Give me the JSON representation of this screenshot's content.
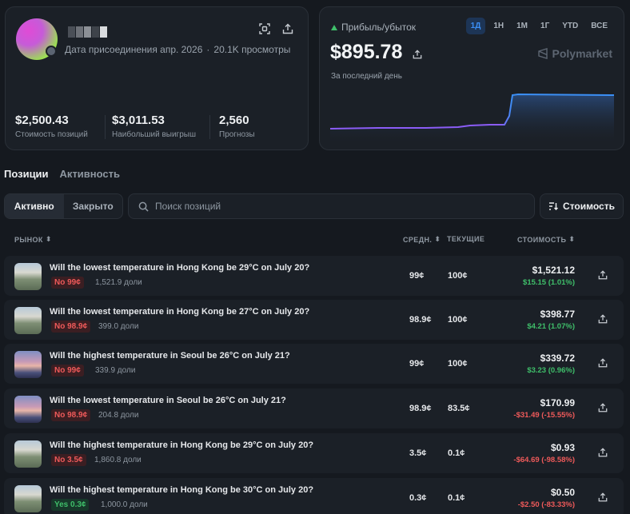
{
  "profile": {
    "joined": "Дата присоединения апр. 2026",
    "views": "20.1K просмотры",
    "stats": [
      {
        "value": "$2,500.43",
        "label": "Стоимость позиций"
      },
      {
        "value": "$3,011.53",
        "label": "Наибольший выигрыш"
      },
      {
        "value": "2,560",
        "label": "Прогнозы"
      }
    ]
  },
  "pnl": {
    "label": "Прибыль/убыток",
    "value": "$895.78",
    "sub": "За последний день",
    "brand": "Polymarket",
    "ranges": [
      "1Д",
      "1Н",
      "1М",
      "1Г",
      "YTD",
      "ВСЕ"
    ],
    "active_range": "1Д",
    "colors": {
      "line_low": "#8b5cf6",
      "line_high": "#3b8ff5",
      "gain": "#3fbf6a",
      "loss": "#ef5a5a"
    }
  },
  "tabs": {
    "positions": "Позиции",
    "activity": "Активность"
  },
  "filters": {
    "active": "Активно",
    "closed": "Закрыто",
    "search_placeholder": "Поиск позиций",
    "sort": "Стоимость"
  },
  "columns": {
    "market": "РЫНОК",
    "avg": "СРЕДН.",
    "current": "ТЕКУЩИЕ",
    "value": "СТОИМОСТЬ"
  },
  "positions": [
    {
      "title": "Will the lowest temperature in Hong Kong be 29°C on July 20?",
      "badge": "No 99¢",
      "side": "no",
      "shares": "1,521.9 доли",
      "avg": "99¢",
      "current": "100¢",
      "value": "$1,521.12",
      "change": "$15.15 (1.01%)",
      "dir": "pos",
      "thumb": "hk"
    },
    {
      "title": "Will the lowest temperature in Hong Kong be 27°C on July 20?",
      "badge": "No 98.9¢",
      "side": "no",
      "shares": "399.0 доли",
      "avg": "98.9¢",
      "current": "100¢",
      "value": "$398.77",
      "change": "$4.21 (1.07%)",
      "dir": "pos",
      "thumb": "hk"
    },
    {
      "title": "Will the highest temperature in Seoul be 26°C on July 21?",
      "badge": "No 99¢",
      "side": "no",
      "shares": "339.9 доли",
      "avg": "99¢",
      "current": "100¢",
      "value": "$339.72",
      "change": "$3.23 (0.96%)",
      "dir": "pos",
      "thumb": "seoul"
    },
    {
      "title": "Will the lowest temperature in Seoul be 26°C on July 21?",
      "badge": "No 98.9¢",
      "side": "no",
      "shares": "204.8 доли",
      "avg": "98.9¢",
      "current": "83.5¢",
      "value": "$170.99",
      "change": "-$31.49 (-15.55%)",
      "dir": "neg",
      "thumb": "seoul"
    },
    {
      "title": "Will the highest temperature in Hong Kong be 29°C on July 20?",
      "badge": "No 3.5¢",
      "side": "no",
      "shares": "1,860.8 доли",
      "avg": "3.5¢",
      "current": "0.1¢",
      "value": "$0.93",
      "change": "-$64.69 (-98.58%)",
      "dir": "neg",
      "thumb": "hk"
    },
    {
      "title": "Will the highest temperature in Hong Kong be 30°C on July 20?",
      "badge": "Yes 0.3¢",
      "side": "yes",
      "shares": "1,000.0 доли",
      "avg": "0.3¢",
      "current": "0.1¢",
      "value": "$0.50",
      "change": "-$2.50 (-83.33%)",
      "dir": "neg",
      "thumb": "hk"
    }
  ]
}
